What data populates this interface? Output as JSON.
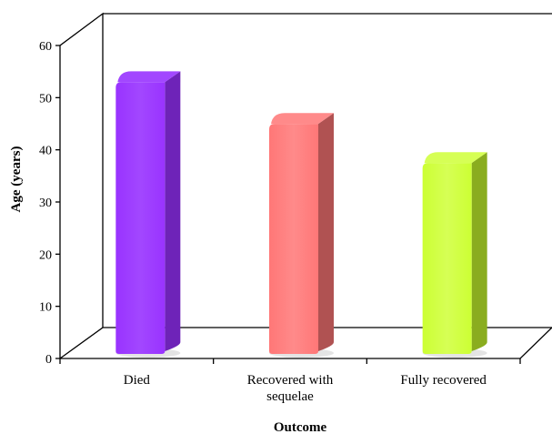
{
  "chart_data": {
    "type": "bar",
    "title": "",
    "categories": [
      "Died",
      "Recovered with sequelae",
      "Fully recovered"
    ],
    "category_lines": [
      [
        "Died"
      ],
      [
        "Recovered with",
        "sequelae"
      ],
      [
        "Fully recovered"
      ]
    ],
    "values": [
      53.5,
      45.5,
      38.0
    ],
    "colors": [
      "#9933ff",
      "#ff7777",
      "#ccff33"
    ],
    "side_colors": [
      "#6e23b8",
      "#b05252",
      "#8aad1f"
    ],
    "top_colors": [
      "#a247ff",
      "#ff8a8a",
      "#d6ff55"
    ],
    "xlabel": "Outcome",
    "ylabel": "Age (years)",
    "ylim": [
      0,
      60
    ],
    "yticks": [
      0,
      10,
      20,
      30,
      40,
      50,
      60
    ],
    "grid": false,
    "style": "3d-perspective"
  }
}
